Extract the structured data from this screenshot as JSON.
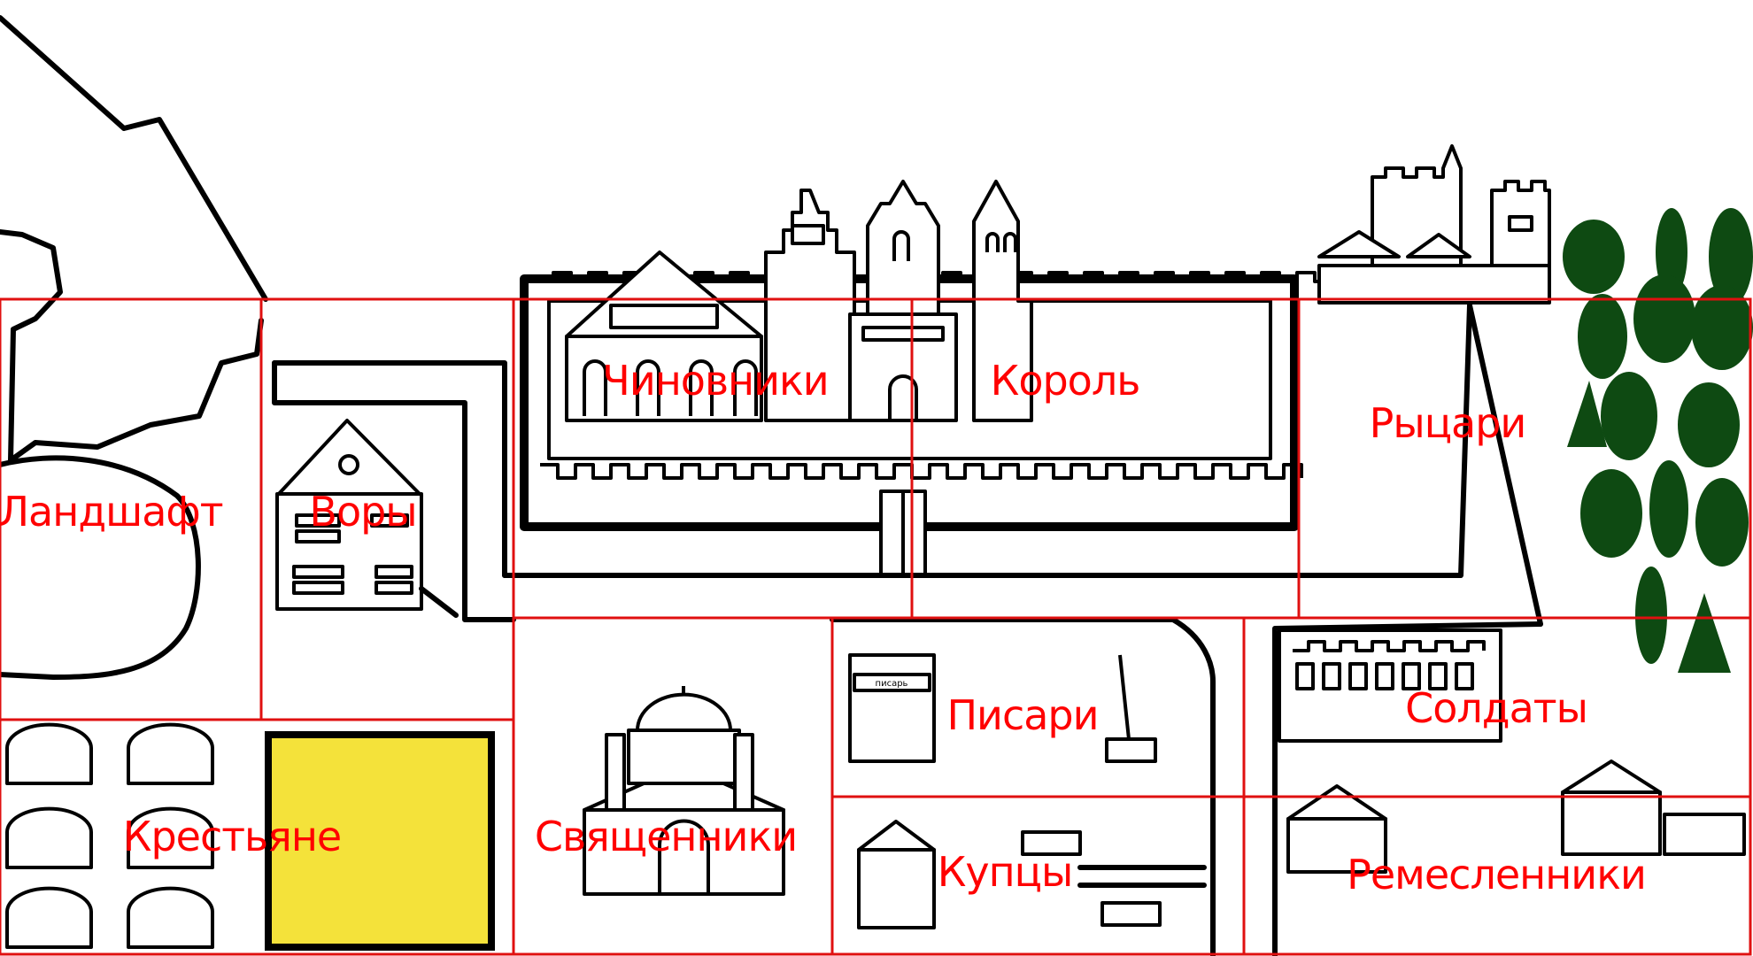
{
  "map": {
    "zones": [
      {
        "id": "landscape",
        "label": "Ландшафт"
      },
      {
        "id": "thieves",
        "label": "Воры"
      },
      {
        "id": "officials",
        "label": "Чиновники"
      },
      {
        "id": "king",
        "label": "Король"
      },
      {
        "id": "knights",
        "label": "Рыцари"
      },
      {
        "id": "peasants",
        "label": "Крестьяне"
      },
      {
        "id": "priests",
        "label": "Священники"
      },
      {
        "id": "scribes",
        "label": "Писари"
      },
      {
        "id": "soldiers",
        "label": "Солдаты"
      },
      {
        "id": "merchants",
        "label": "Купцы"
      },
      {
        "id": "artisans",
        "label": "Ремесленники"
      }
    ],
    "scribe_sign": "писарь",
    "colors": {
      "zone_border": "#e01010",
      "label": "#ff0000",
      "tree": "#0e4a12",
      "wheat": "#f4e23a"
    }
  }
}
